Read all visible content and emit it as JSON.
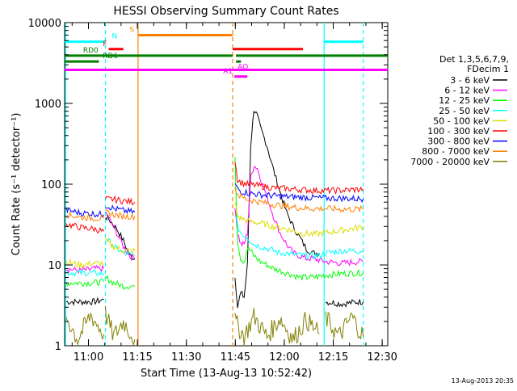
{
  "chart_data": {
    "type": "line",
    "title": "HESSI Observing Summary Count Rates",
    "xlabel": "Start Time (13-Aug-13 10:52:42)",
    "ylabel": "Count Rate (s⁻¹ detector⁻¹)",
    "footer": "13-Aug-2013 20:35",
    "y_scale": "log",
    "ylim": [
      1,
      10000
    ],
    "xlim_min": [
      0,
      99
    ],
    "x_ticks": [
      {
        "m": 7.3,
        "label": "11:00"
      },
      {
        "m": 22.3,
        "label": "11:15"
      },
      {
        "m": 37.3,
        "label": "11:30"
      },
      {
        "m": 52.3,
        "label": "11:45"
      },
      {
        "m": 67.3,
        "label": "12:00"
      },
      {
        "m": 82.3,
        "label": "12:15"
      },
      {
        "m": 97.3,
        "label": "12:30"
      }
    ],
    "y_ticks": [
      {
        "v": 1,
        "label": "1"
      },
      {
        "v": 10,
        "label": "10"
      },
      {
        "v": 100,
        "label": "100"
      },
      {
        "v": 1000,
        "label": "1000"
      },
      {
        "v": 10000,
        "label": "10000"
      }
    ],
    "legend": {
      "title_lines": [
        "Det 1,3,5,6,7,9,",
        "FDecim 1"
      ],
      "entries": [
        {
          "label": "3 - 6 keV",
          "color": "#000000"
        },
        {
          "label": "6 - 12 keV",
          "color": "#ff00ff"
        },
        {
          "label": "12 - 25 keV",
          "color": "#00ff00"
        },
        {
          "label": "25 - 50 keV",
          "color": "#00ffff"
        },
        {
          "label": "50 - 100 keV",
          "color": "#dddd00"
        },
        {
          "label": "100 - 300 keV",
          "color": "#ff0000"
        },
        {
          "label": "300 - 800 keV",
          "color": "#0000ff"
        },
        {
          "label": "800 - 7000 keV",
          "color": "#ff8000"
        },
        {
          "label": "7000 - 20000 keV",
          "color": "#808000"
        }
      ]
    },
    "flags": [
      {
        "label": "N",
        "color": "#00ffff",
        "y": 5800,
        "segments": [
          [
            0,
            12.5
          ],
          [
            79.5,
            91.5
          ]
        ]
      },
      {
        "label": "S",
        "color": "#ff8000",
        "y": 7000,
        "segments": [
          [
            22.5,
            51.5
          ]
        ]
      },
      {
        "label": "F",
        "color": "#ff0000",
        "y": 4700,
        "segments": [
          [
            13.5,
            18
          ],
          [
            51.5,
            73
          ]
        ]
      },
      {
        "label": "RD0",
        "color": "#008000",
        "y": 3900,
        "segments": [
          [
            0,
            51.5
          ],
          [
            52.5,
            99
          ]
        ]
      },
      {
        "label": "RD6",
        "color": "#008000",
        "y": 3300,
        "segments": [
          [
            0,
            10.5
          ],
          [
            52.5,
            54
          ]
        ]
      },
      {
        "label": "AQ",
        "color": "#ff00ff",
        "y": 2600,
        "segments": [
          [
            0,
            99
          ]
        ]
      },
      {
        "label": "A1",
        "color": "#ff00ff",
        "y": 2150,
        "segments": [
          [
            52,
            56
          ]
        ]
      }
    ],
    "vlines": [
      {
        "m": 0.3,
        "color": "#00ffff",
        "style": "solid"
      },
      {
        "m": 12.5,
        "color": "#00ffff",
        "style": "dashed"
      },
      {
        "m": 22.5,
        "color": "#ff8000",
        "style": "solid"
      },
      {
        "m": 51.5,
        "color": "#ff8000",
        "style": "dashed"
      },
      {
        "m": 79.5,
        "color": "#00ffff",
        "style": "solid"
      },
      {
        "m": 91.5,
        "color": "#00ffff",
        "style": "dashed"
      }
    ],
    "series": [
      {
        "name": "3 - 6 keV",
        "color": "#000000",
        "segments": [
          [
            [
              0.5,
              3.5
            ],
            [
              5,
              3.5
            ],
            [
              9,
              3.5
            ],
            [
              12,
              3.7
            ]
          ],
          [
            [
              12.5,
              40
            ],
            [
              14,
              35
            ],
            [
              16,
              28
            ],
            [
              18,
              20
            ],
            [
              20,
              13
            ],
            [
              21.5,
              12
            ]
          ],
          [
            [
              52.2,
              7
            ],
            [
              53,
              3.2
            ],
            [
              54,
              4.5
            ],
            [
              55,
              4
            ],
            [
              56,
              10
            ],
            [
              57,
              300
            ],
            [
              58,
              850
            ],
            [
              59,
              700
            ],
            [
              60,
              500
            ],
            [
              62,
              300
            ],
            [
              64,
              150
            ],
            [
              66,
              80
            ],
            [
              68,
              45
            ],
            [
              70,
              30
            ],
            [
              72,
              22
            ],
            [
              74,
              16
            ],
            [
              76,
              14
            ],
            [
              78,
              14
            ]
          ],
          [
            [
              80,
              3.5
            ],
            [
              85,
              3.3
            ],
            [
              90,
              3.5
            ],
            [
              91.5,
              3.5
            ]
          ]
        ]
      },
      {
        "name": "6 - 12 keV",
        "color": "#ff00ff",
        "segments": [
          [
            [
              0.5,
              9
            ],
            [
              5,
              8.5
            ],
            [
              9,
              9
            ],
            [
              12,
              9
            ]
          ],
          [
            [
              12.5,
              45
            ],
            [
              14,
              35
            ],
            [
              16,
              25
            ],
            [
              18,
              17
            ],
            [
              20,
              13
            ],
            [
              21.5,
              12
            ]
          ],
          [
            [
              52.2,
              55
            ],
            [
              53,
              25
            ],
            [
              54,
              18
            ],
            [
              55,
              18
            ],
            [
              56,
              25
            ],
            [
              57,
              120
            ],
            [
              58,
              170
            ],
            [
              59,
              160
            ],
            [
              60,
              120
            ],
            [
              62,
              70
            ],
            [
              64,
              40
            ],
            [
              66,
              25
            ],
            [
              68,
              18
            ],
            [
              70,
              14
            ],
            [
              72,
              13
            ],
            [
              74,
              12
            ],
            [
              76,
              12
            ],
            [
              80,
              11
            ],
            [
              85,
              10.5
            ],
            [
              90,
              11
            ],
            [
              91.5,
              11
            ]
          ]
        ]
      },
      {
        "name": "12 - 25 keV",
        "color": "#00ff00",
        "segments": [
          [
            [
              0.5,
              6
            ],
            [
              5,
              6
            ],
            [
              9,
              6
            ],
            [
              12,
              6.2
            ]
          ],
          [
            [
              12.5,
              7
            ],
            [
              15,
              6
            ],
            [
              18,
              5.5
            ],
            [
              21.5,
              5.5
            ]
          ],
          [
            [
              52.2,
              200
            ],
            [
              53,
              20
            ],
            [
              54,
              12
            ],
            [
              55,
              11
            ],
            [
              56,
              16
            ],
            [
              57,
              15
            ],
            [
              58,
              13
            ],
            [
              60,
              11
            ],
            [
              62,
              10
            ],
            [
              64,
              9
            ],
            [
              66,
              8.5
            ],
            [
              68,
              8
            ],
            [
              70,
              7.5
            ],
            [
              72,
              7
            ],
            [
              76,
              7
            ],
            [
              80,
              7.5
            ],
            [
              85,
              7.8
            ],
            [
              90,
              8
            ],
            [
              91.5,
              8
            ]
          ]
        ]
      },
      {
        "name": "25 - 50 keV",
        "color": "#00ffff",
        "segments": [
          [
            [
              0.5,
              8
            ],
            [
              5,
              8
            ],
            [
              9,
              8
            ],
            [
              12,
              7.7
            ]
          ],
          [
            [
              12.5,
              22
            ],
            [
              15,
              17
            ],
            [
              18,
              14
            ],
            [
              21.5,
              13
            ]
          ],
          [
            [
              52.2,
              45
            ],
            [
              53,
              30
            ],
            [
              54,
              25
            ],
            [
              56,
              22
            ],
            [
              58,
              18
            ],
            [
              60,
              17
            ],
            [
              62,
              16
            ],
            [
              64,
              15
            ],
            [
              66,
              14
            ],
            [
              68,
              14
            ],
            [
              70,
              13.5
            ],
            [
              74,
              13
            ],
            [
              78,
              13
            ],
            [
              80,
              14
            ],
            [
              85,
              15
            ],
            [
              90,
              15
            ],
            [
              91.5,
              15
            ]
          ]
        ]
      },
      {
        "name": "50 - 100 keV",
        "color": "#dddd00",
        "segments": [
          [
            [
              0.5,
              11
            ],
            [
              5,
              10
            ],
            [
              9,
              10.5
            ],
            [
              12,
              10.5
            ]
          ],
          [
            [
              12.5,
              20
            ],
            [
              15,
              17
            ],
            [
              18,
              15
            ],
            [
              21.5,
              15
            ]
          ],
          [
            [
              52.2,
              60
            ],
            [
              53,
              40
            ],
            [
              54,
              38
            ],
            [
              56,
              35
            ],
            [
              60,
              33
            ],
            [
              64,
              30
            ],
            [
              68,
              28
            ],
            [
              72,
              25
            ],
            [
              76,
              24
            ],
            [
              80,
              25
            ],
            [
              85,
              27
            ],
            [
              90,
              29
            ],
            [
              91.5,
              30
            ]
          ]
        ]
      },
      {
        "name": "100 - 300 keV",
        "color": "#ff0000",
        "segments": [
          [
            [
              0.5,
              32
            ],
            [
              5,
              29
            ],
            [
              9,
              28
            ],
            [
              12,
              26
            ]
          ],
          [
            [
              12.5,
              65
            ],
            [
              15,
              65
            ],
            [
              18,
              62
            ],
            [
              21.5,
              60
            ]
          ],
          [
            [
              52.2,
              200
            ],
            [
              53,
              115
            ],
            [
              54,
              105
            ],
            [
              56,
              100
            ],
            [
              60,
              95
            ],
            [
              64,
              90
            ],
            [
              68,
              88
            ],
            [
              72,
              86
            ],
            [
              76,
              84
            ],
            [
              80,
              83
            ],
            [
              85,
              84
            ],
            [
              90,
              86
            ],
            [
              91.5,
              87
            ]
          ]
        ]
      },
      {
        "name": "300 - 800 keV",
        "color": "#0000ff",
        "segments": [
          [
            [
              0.5,
              48
            ],
            [
              5,
              44
            ],
            [
              9,
              43
            ],
            [
              12,
              42
            ]
          ],
          [
            [
              12.5,
              55
            ],
            [
              15,
              50
            ],
            [
              18,
              47
            ],
            [
              21.5,
              45
            ]
          ],
          [
            [
              52.2,
              100
            ],
            [
              53,
              88
            ],
            [
              54,
              82
            ],
            [
              56,
              78
            ],
            [
              60,
              74
            ],
            [
              64,
              72
            ],
            [
              68,
              70
            ],
            [
              72,
              69
            ],
            [
              76,
              68
            ],
            [
              80,
              67
            ],
            [
              85,
              67
            ],
            [
              90,
              66
            ],
            [
              91.5,
              66
            ]
          ]
        ]
      },
      {
        "name": "800 - 7000 keV",
        "color": "#ff8000",
        "segments": [
          [
            [
              0.5,
              42
            ],
            [
              5,
              39
            ],
            [
              9,
              38
            ],
            [
              12,
              38
            ]
          ],
          [
            [
              12.5,
              45
            ],
            [
              15,
              42
            ],
            [
              18,
              40
            ],
            [
              21.5,
              40
            ]
          ],
          [
            [
              52.2,
              90
            ],
            [
              53,
              75
            ],
            [
              54,
              70
            ],
            [
              56,
              65
            ],
            [
              60,
              60
            ],
            [
              64,
              56
            ],
            [
              68,
              53
            ],
            [
              72,
              51
            ],
            [
              76,
              50
            ],
            [
              80,
              50
            ],
            [
              85,
              49
            ],
            [
              90,
              49
            ],
            [
              91.5,
              49
            ]
          ]
        ]
      },
      {
        "name": "7000 - 20000 keV",
        "color": "#808000",
        "segments": [
          [
            [
              0.5,
              2.3
            ],
            [
              4,
              1.2
            ],
            [
              8,
              2.4
            ],
            [
              12,
              1.4
            ]
          ],
          [
            [
              12.5,
              2.5
            ],
            [
              15,
              1.3
            ],
            [
              18,
              2.0
            ],
            [
              21.5,
              1.2
            ]
          ],
          [
            [
              52.2,
              2.0
            ],
            [
              55,
              1.3
            ],
            [
              58,
              2.3
            ],
            [
              62,
              1.3
            ],
            [
              66,
              2.2
            ],
            [
              70,
              1.2
            ],
            [
              74,
              2.1
            ],
            [
              78,
              1.4
            ]
          ],
          [
            [
              80,
              2.2
            ],
            [
              84,
              1.3
            ],
            [
              88,
              2.3
            ],
            [
              91.5,
              1.3
            ]
          ]
        ]
      }
    ]
  }
}
